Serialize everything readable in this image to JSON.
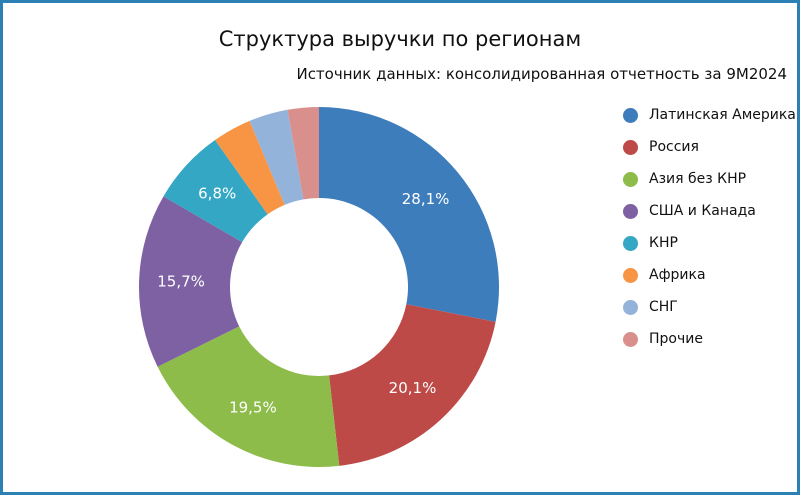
{
  "chart": {
    "title": "Структура выручки по регионам",
    "subtitle": "Источник данных: консолидированная отчетность за 9М2024"
  },
  "colors": {
    "frame_border": "#2C80B4",
    "text": "#111111",
    "slice_label_text": "#ffffff"
  },
  "chart_data": {
    "type": "pie",
    "donut": true,
    "title": "Структура выручки по регионам",
    "subtitle": "Источник данных: консолидированная отчетность за 9М2024",
    "start_angle": "top",
    "direction": "clockwise",
    "legend_position": "right",
    "slices": [
      {
        "label": "Латинская Америка",
        "value": 28.1,
        "display": "28,1%",
        "color": "#3E7DBC"
      },
      {
        "label": "Россия",
        "value": 20.1,
        "display": "20,1%",
        "color": "#BE4A47"
      },
      {
        "label": "Азия без КНР",
        "value": 19.5,
        "display": "19,5%",
        "color": "#8EBC4A"
      },
      {
        "label": "США и Канада",
        "value": 15.7,
        "display": "15,7%",
        "color": "#7E61A3"
      },
      {
        "label": "КНР",
        "value": 6.8,
        "display": "6,8%",
        "color": "#33A7C4"
      },
      {
        "label": "Африка",
        "value": 3.5,
        "display": "",
        "color": "#F79545"
      },
      {
        "label": "СНГ",
        "value": 3.5,
        "display": "",
        "color": "#94B3DB"
      },
      {
        "label": "Прочие",
        "value": 2.8,
        "display": "",
        "color": "#D9908D"
      }
    ]
  }
}
